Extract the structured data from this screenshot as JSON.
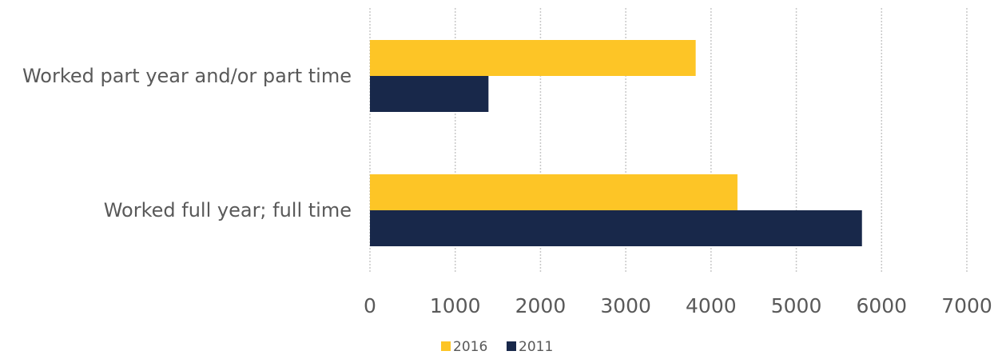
{
  "chart_data": {
    "type": "bar",
    "orientation": "horizontal",
    "categories": [
      "Worked part year and/or part time",
      "Worked full year; full time"
    ],
    "series": [
      {
        "name": "2016",
        "color": "#FDC526",
        "values": [
          3820,
          4310
        ]
      },
      {
        "name": "2011",
        "color": "#18284A",
        "values": [
          1390,
          5770
        ]
      }
    ],
    "xlim": [
      0,
      7000
    ],
    "x_ticks": [
      "0",
      "1000",
      "2000",
      "3000",
      "4000",
      "5000",
      "6000",
      "7000"
    ],
    "grid": true,
    "grid_style": "dotted vertical",
    "legend_position": "bottom",
    "title": "",
    "xlabel": "",
    "ylabel": ""
  }
}
